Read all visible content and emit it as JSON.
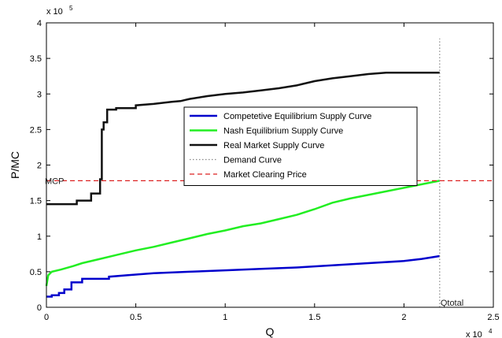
{
  "chart_data": {
    "type": "line",
    "xlabel": "Q",
    "ylabel": "P/MC",
    "xlim": [
      0,
      25000
    ],
    "ylim": [
      0,
      400000
    ],
    "x_ticks": [
      0,
      5000,
      10000,
      15000,
      20000,
      25000
    ],
    "x_tick_labels": [
      "0",
      "0.5",
      "1",
      "1.5",
      "2",
      "2.5"
    ],
    "y_ticks": [
      0,
      50000,
      100000,
      150000,
      200000,
      250000,
      300000,
      350000,
      400000
    ],
    "y_tick_labels": [
      "0",
      "0.5",
      "1",
      "1.5",
      "2",
      "2.5",
      "3",
      "3.5",
      "4"
    ],
    "x_exponent_label": "x 10",
    "x_exponent_power": "4",
    "y_exponent_label": "x 10",
    "y_exponent_power": "5",
    "grid": false,
    "legend_position": "center",
    "series": [
      {
        "name": "Competetive Equilibrium Supply Curve",
        "color": "#0000cc",
        "style": "solid",
        "x": [
          0,
          300,
          300,
          700,
          700,
          1000,
          1000,
          1400,
          1400,
          2000,
          2000,
          3500,
          3500,
          4500,
          6000,
          8000,
          10000,
          12000,
          14000,
          16000,
          18000,
          20000,
          21000,
          22000
        ],
        "y": [
          15000,
          15000,
          17000,
          17000,
          20000,
          20000,
          25000,
          25000,
          35000,
          35000,
          40000,
          40000,
          43000,
          45000,
          48000,
          50000,
          52000,
          54000,
          56000,
          59000,
          62000,
          65000,
          68000,
          72000
        ]
      },
      {
        "name": "Nash Equilibrium Supply Curve",
        "color": "#22ee22",
        "style": "solid",
        "x": [
          0,
          100,
          300,
          800,
          1500,
          2000,
          3000,
          4000,
          5000,
          6000,
          7000,
          8000,
          9000,
          10000,
          11000,
          12000,
          13000,
          14000,
          15000,
          16000,
          17000,
          18000,
          19000,
          20000,
          21000,
          22000
        ],
        "y": [
          30000,
          45000,
          50000,
          53000,
          58000,
          62000,
          68000,
          74000,
          80000,
          85000,
          91000,
          97000,
          103000,
          108000,
          114000,
          118000,
          124000,
          130000,
          138000,
          147000,
          153000,
          158000,
          163000,
          168000,
          173000,
          178000
        ]
      },
      {
        "name": "Real Market Supply Curve",
        "color": "#111111",
        "style": "solid",
        "x": [
          0,
          1700,
          1700,
          2500,
          2500,
          3000,
          3000,
          3100,
          3100,
          3200,
          3200,
          3400,
          3400,
          3900,
          3900,
          5000,
          5000,
          6000,
          7000,
          7500,
          8000,
          9000,
          10000,
          11000,
          12000,
          13000,
          14000,
          15000,
          16000,
          17000,
          18000,
          19000,
          20000,
          21000,
          22000
        ],
        "y": [
          145000,
          145000,
          150000,
          150000,
          160000,
          160000,
          180000,
          180000,
          250000,
          250000,
          260000,
          260000,
          278000,
          278000,
          280000,
          280000,
          284000,
          286000,
          289000,
          290000,
          293000,
          297000,
          300000,
          302000,
          305000,
          308000,
          312000,
          318000,
          322000,
          325000,
          328000,
          330000,
          330000,
          330000,
          330000
        ]
      },
      {
        "name": "Demand Curve",
        "color": "#888888",
        "style": "dotted",
        "x": [
          22000,
          22000
        ],
        "y": [
          0,
          378000
        ]
      },
      {
        "name": "Market Clearing Price",
        "color": "#dd2222",
        "style": "dashed",
        "x": [
          0,
          25000
        ],
        "y": [
          178000,
          178000
        ]
      }
    ],
    "annotations": [
      {
        "text": "MCP",
        "x": 0,
        "y": 178000
      },
      {
        "text": "Qtotal",
        "x": 22000,
        "y": 0
      }
    ]
  }
}
